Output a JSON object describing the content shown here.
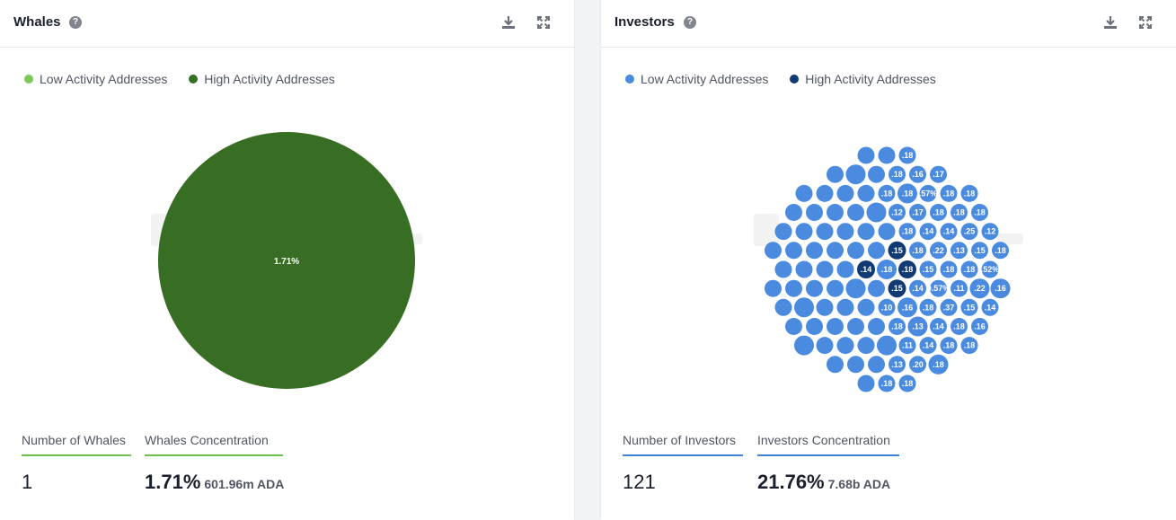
{
  "colors": {
    "whale_low": "#7cc95a",
    "whale_high": "#386e23",
    "investor_low": "#4a8adf",
    "investor_high": "#123a72",
    "whale_underline": "#6cc14d",
    "investor_underline": "#3f80d8"
  },
  "whales": {
    "title": "Whales",
    "help_icon": "help-circle-icon",
    "download_icon": "download-icon",
    "expand_icon": "expand-icon",
    "legend": [
      "Low Activity Addresses",
      "High Activity Addresses"
    ],
    "pie_label": "1.71%",
    "stats": {
      "count_label": "Number of Whales",
      "count_value": "1",
      "concentration_label": "Whales Concentration",
      "concentration_value": "1.71%",
      "concentration_sub": "601.96m ADA"
    }
  },
  "investors": {
    "title": "Investors",
    "help_icon": "help-circle-icon",
    "download_icon": "download-icon",
    "expand_icon": "expand-icon",
    "legend": [
      "Low Activity Addresses",
      "High Activity Addresses"
    ],
    "stats": {
      "count_label": "Number of Investors",
      "count_value": "121",
      "concentration_label": "Investors Concentration",
      "concentration_value": "21.76%",
      "concentration_sub": "7.68b ADA"
    }
  },
  "chart_data": [
    {
      "type": "pie",
      "title": "",
      "slices": [
        {
          "name": "High Activity Addresses",
          "value": 1.71,
          "label": "1.71%"
        }
      ]
    },
    {
      "type": "bubble",
      "title": "",
      "series": [
        {
          "name": "Low Activity Addresses",
          "count": 117
        },
        {
          "name": "High Activity Addresses",
          "count": 4
        }
      ],
      "visible_bubble_labels": [
        ".18",
        ".14",
        ".18",
        ".15",
        ".15",
        ".18",
        ".14",
        ".10",
        ".15",
        ".18",
        ".16",
        ".22",
        "0.57%",
        ".14",
        ".18",
        ".12",
        ".18",
        ".18",
        ".17",
        ".13",
        ".14",
        ".37",
        ".13",
        ".11",
        ".18",
        ".18",
        ".14",
        ".11",
        ".18",
        ".18",
        ".14",
        ".57%",
        ".25",
        ".15",
        ".18",
        ".18",
        ".15",
        ".22",
        ".18",
        ".13",
        ".18",
        ".18",
        ".16",
        ".20",
        ".52%",
        ".17",
        ".18",
        ".18",
        ".16",
        ".12",
        ".14",
        ".18",
        ".18",
        ".18",
        ".18",
        ".16",
        ".18",
        ".18",
        ".18"
      ]
    }
  ]
}
